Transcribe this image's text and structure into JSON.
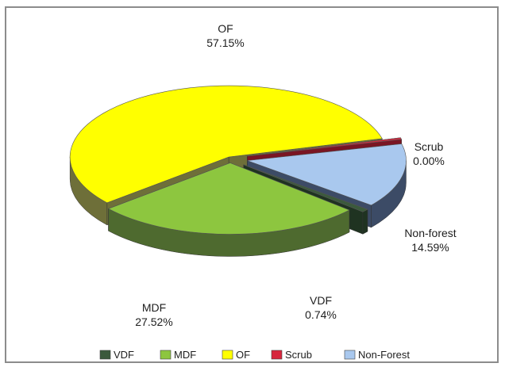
{
  "chart_data": {
    "type": "pie",
    "style": "3d-exploded",
    "title": "",
    "slices": [
      {
        "label": "VDF",
        "value": 0.74,
        "display": "0.74%",
        "color": "#3b5a3c",
        "side": "#1f3321"
      },
      {
        "label": "MDF",
        "value": 27.52,
        "display": "27.52%",
        "color": "#8dc63f",
        "side": "#4e6a2f"
      },
      {
        "label": "OF",
        "value": 57.15,
        "display": "57.15%",
        "color": "#ffff00",
        "side": "#6e6f39"
      },
      {
        "label": "Scrub",
        "value": 0.0,
        "display": "0.00%",
        "color": "#d7263d",
        "side": "#7a1523"
      },
      {
        "label": "Non-forest",
        "value": 14.59,
        "display": "14.59%",
        "color": "#a9c8ee",
        "side": "#3c4b66"
      }
    ],
    "legend": {
      "position": "bottom",
      "entries": [
        {
          "label": "VDF",
          "color": "#3b5a3c"
        },
        {
          "label": "MDF",
          "color": "#8dc63f"
        },
        {
          "label": "OF",
          "color": "#ffff00"
        },
        {
          "label": "Scrub",
          "color": "#d7263d"
        },
        {
          "label": "Non-Forest",
          "color": "#a9c8ee"
        }
      ]
    }
  }
}
